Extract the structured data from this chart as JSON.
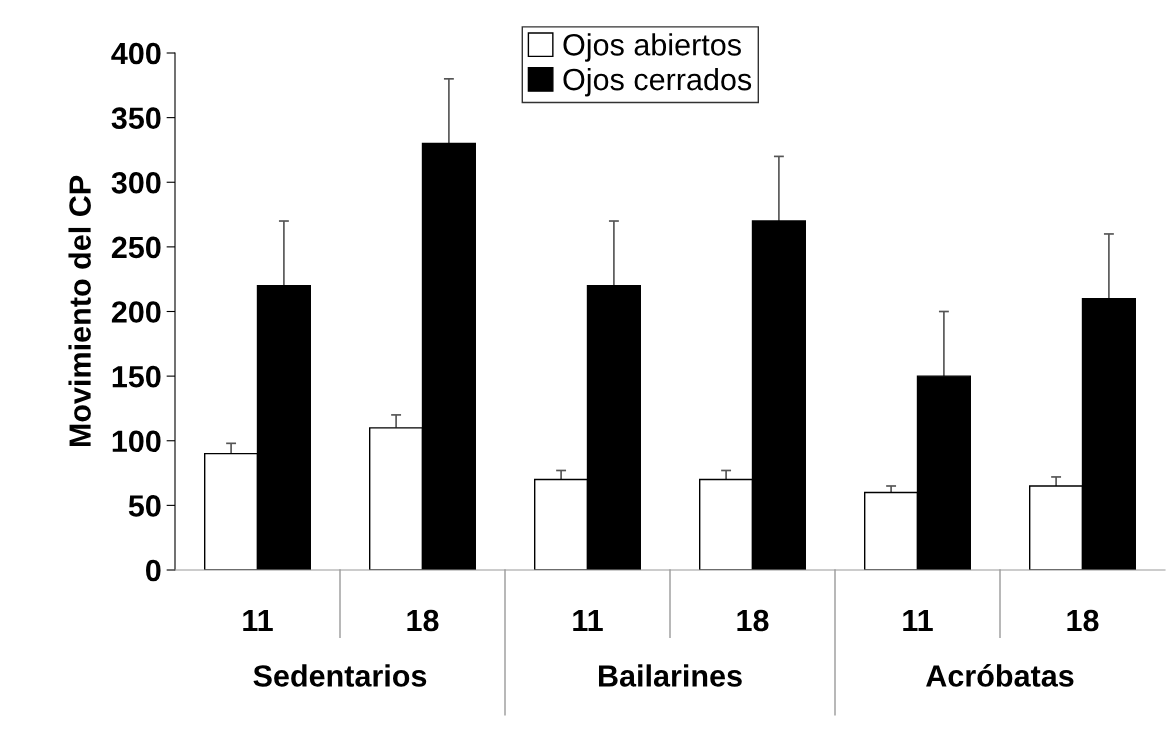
{
  "chart_data": {
    "type": "bar",
    "ylabel": "Movimiento del CP",
    "categories": [
      "11",
      "18",
      "11",
      "18",
      "11",
      "18"
    ],
    "series": [
      {
        "name": "Ojos abiertos",
        "color": "#ffffff",
        "values": [
          90,
          110,
          70,
          70,
          60,
          65
        ],
        "errors": [
          [
            90,
            98
          ],
          [
            110,
            120
          ],
          [
            70,
            77
          ],
          [
            70,
            77
          ],
          [
            60,
            65
          ],
          [
            65,
            72
          ]
        ]
      },
      {
        "name": "Ojos cerrados",
        "color": "#000000",
        "values": [
          220,
          330,
          220,
          270,
          150,
          210
        ],
        "errors": [
          [
            220,
            270
          ],
          [
            330,
            380
          ],
          [
            220,
            270
          ],
          [
            270,
            320
          ],
          [
            150,
            200
          ],
          [
            210,
            260
          ]
        ]
      }
    ],
    "annotations": [
      "Sedentarios",
      "Bailarines",
      "Acróbatas"
    ],
    "ylim": [
      0,
      400
    ],
    "yticks": [
      0,
      50,
      100,
      150,
      200,
      250,
      300,
      350,
      400
    ],
    "grid": false,
    "legend": "top"
  }
}
